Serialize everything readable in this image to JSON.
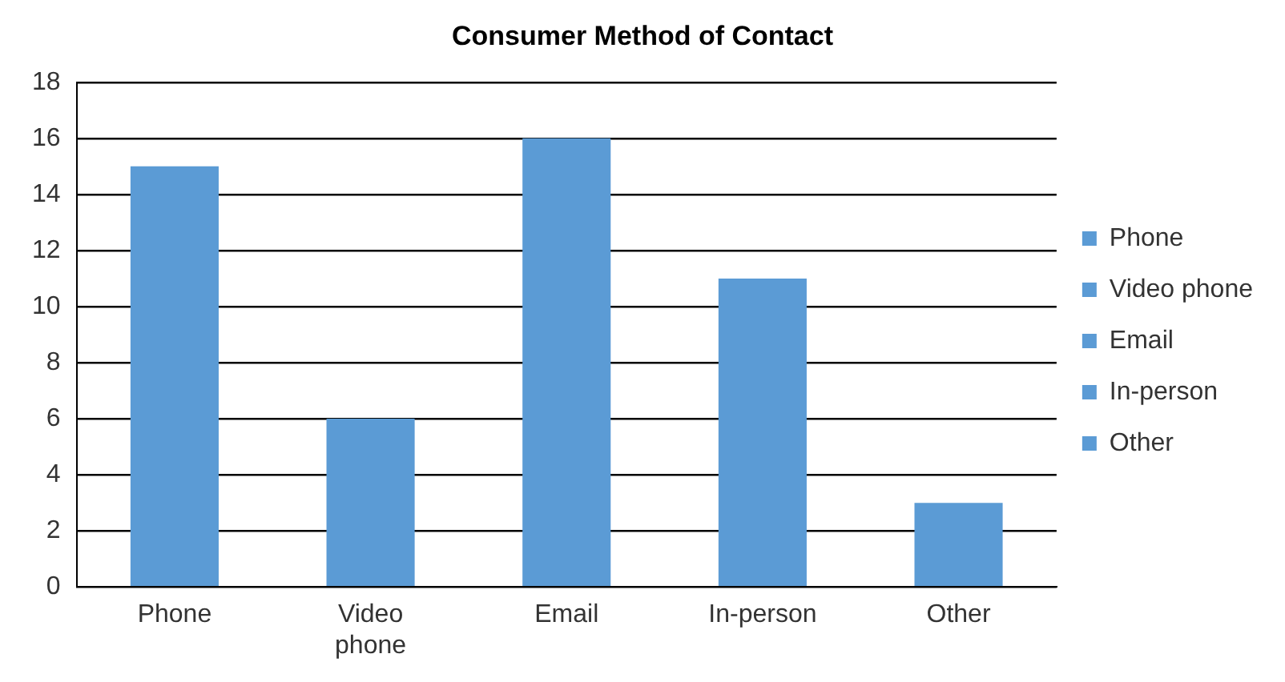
{
  "chart_data": {
    "type": "bar",
    "title": "Consumer Method of Contact",
    "categories": [
      "Phone",
      "Video phone",
      "Email",
      "In-person",
      "Other"
    ],
    "series": [
      {
        "name": "Phone",
        "color": "#5b9bd5",
        "values": [
          15,
          null,
          null,
          null,
          null
        ]
      },
      {
        "name": "Video phone",
        "color": "#5b9bd5",
        "values": [
          null,
          6,
          null,
          null,
          null
        ]
      },
      {
        "name": "Email",
        "color": "#5b9bd5",
        "values": [
          null,
          null,
          16,
          null,
          null
        ]
      },
      {
        "name": "In-person",
        "color": "#5b9bd5",
        "values": [
          null,
          null,
          null,
          11,
          null
        ]
      },
      {
        "name": "Other",
        "color": "#5b9bd5",
        "values": [
          null,
          null,
          null,
          null,
          3
        ]
      }
    ],
    "stacked": true,
    "ylim": [
      0,
      18
    ],
    "yticks": [
      0,
      2,
      4,
      6,
      8,
      10,
      12,
      14,
      16,
      18
    ],
    "grid": "y",
    "legend": "right"
  }
}
